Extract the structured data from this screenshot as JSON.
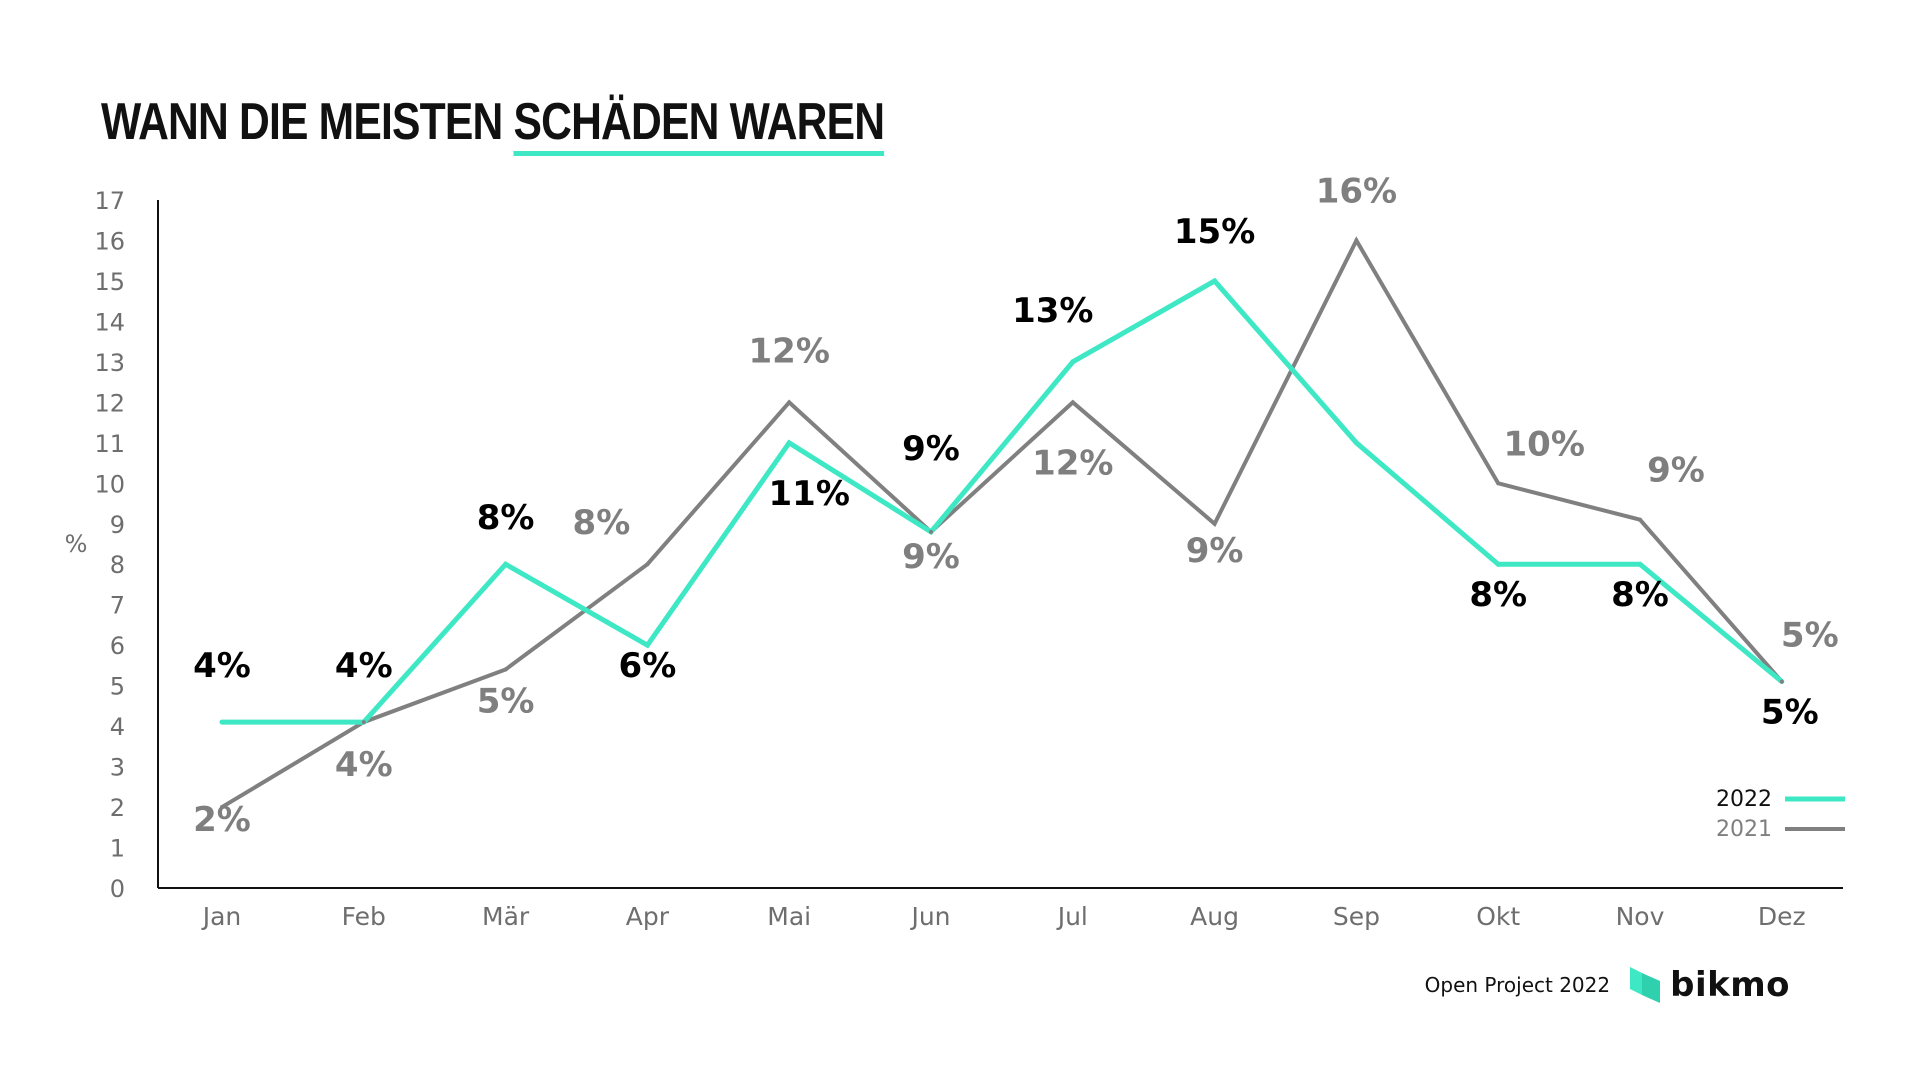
{
  "title": {
    "part1": "WANN DIE MEISTEN ",
    "part2": "SCHÄDEN WAREN"
  },
  "footer": {
    "project": "Open Project 2022",
    "brand": "bikmo",
    "logo_icon": "bikmo-logo-icon"
  },
  "colors": {
    "series_2022": "#3ee8c5",
    "series_2021": "#808080",
    "label_2022": "#000000",
    "label_2021": "#7f7f7f",
    "axis": "#111111",
    "tick_text": "#6e6e6e"
  },
  "chart_data": {
    "type": "line",
    "title": "WANN DIE MEISTEN SCHÄDEN WAREN",
    "xlabel": "",
    "ylabel": "%",
    "ylim": [
      0,
      17
    ],
    "yticks": [
      0,
      1,
      2,
      3,
      4,
      5,
      6,
      7,
      8,
      9,
      10,
      11,
      12,
      13,
      14,
      15,
      16,
      17
    ],
    "categories": [
      "Jan",
      "Feb",
      "Mär",
      "Apr",
      "Mai",
      "Jun",
      "Jul",
      "Aug",
      "Sep",
      "Okt",
      "Nov",
      "Dez"
    ],
    "grid": false,
    "legend_position": "bottom-right",
    "series": [
      {
        "name": "2022",
        "values": [
          4.1,
          4.1,
          8,
          6,
          11,
          8.8,
          13,
          15,
          11,
          8,
          8,
          5.1
        ],
        "labels": [
          "4%",
          "4%",
          "8%",
          "6%",
          "11%",
          "9%",
          "13%",
          "15%",
          "",
          "8%",
          "8%",
          "5%"
        ]
      },
      {
        "name": "2021",
        "values": [
          2,
          4.1,
          5.4,
          8,
          12,
          8.8,
          12,
          9,
          16,
          10,
          9.1,
          5.1
        ],
        "labels": [
          "2%",
          "4%",
          "5%",
          "8%",
          "12%",
          "9%",
          "12%",
          "9%",
          "16%",
          "10%",
          "9%",
          "5%"
        ]
      }
    ]
  }
}
